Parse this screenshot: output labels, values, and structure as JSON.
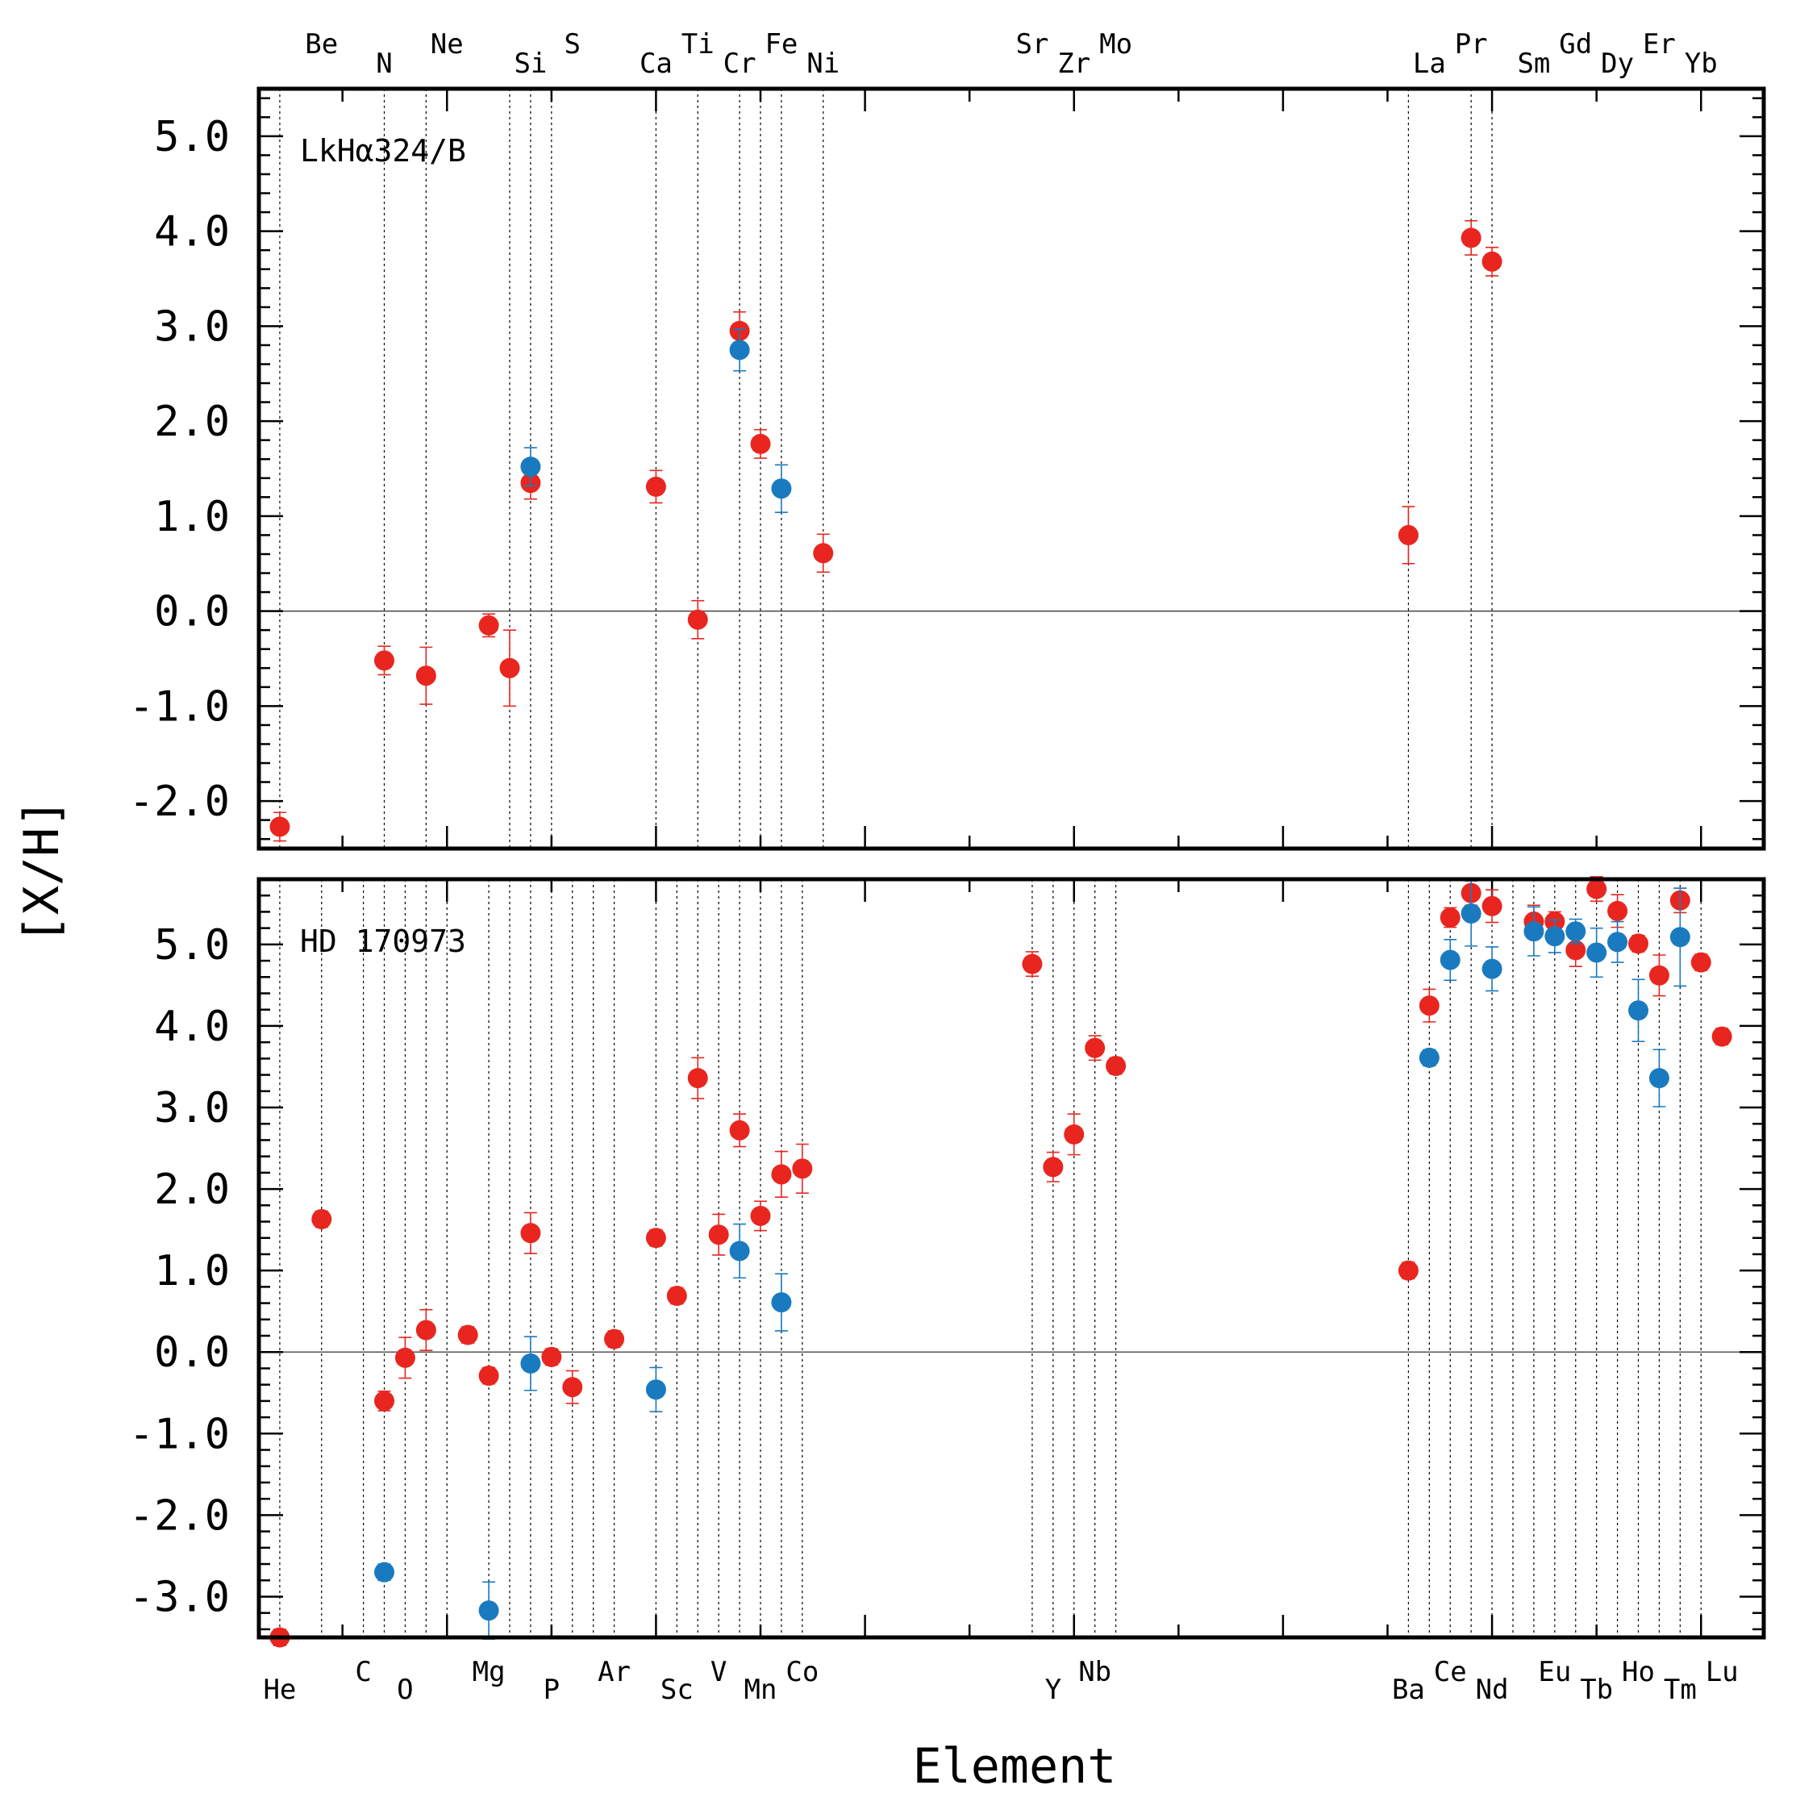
{
  "colors": {
    "red": "#e8261f",
    "blue": "#1a7abf"
  },
  "chart_data": {
    "type": "scatter",
    "xlabel": "Element",
    "ylabel": "[X/H]",
    "x_axis": "atomic number Z",
    "xlim": [
      1,
      73
    ],
    "elements_top": [
      {
        "symbol": "Be",
        "z": 4
      },
      {
        "symbol": "N",
        "z": 7
      },
      {
        "symbol": "Ne",
        "z": 10
      },
      {
        "symbol": "Si",
        "z": 14
      },
      {
        "symbol": "S",
        "z": 16
      },
      {
        "symbol": "Ca",
        "z": 20
      },
      {
        "symbol": "Ti",
        "z": 22
      },
      {
        "symbol": "Cr",
        "z": 24
      },
      {
        "symbol": "Fe",
        "z": 26
      },
      {
        "symbol": "Ni",
        "z": 28
      },
      {
        "symbol": "Sr",
        "z": 38
      },
      {
        "symbol": "Zr",
        "z": 40
      },
      {
        "symbol": "Mo",
        "z": 42
      },
      {
        "symbol": "La",
        "z": 57
      },
      {
        "symbol": "Pr",
        "z": 59
      },
      {
        "symbol": "Sm",
        "z": 62
      },
      {
        "symbol": "Gd",
        "z": 64
      },
      {
        "symbol": "Dy",
        "z": 66
      },
      {
        "symbol": "Er",
        "z": 68
      },
      {
        "symbol": "Yb",
        "z": 70
      }
    ],
    "elements_bottom": [
      {
        "symbol": "He",
        "z": 2
      },
      {
        "symbol": "C",
        "z": 6
      },
      {
        "symbol": "O",
        "z": 8
      },
      {
        "symbol": "Mg",
        "z": 12
      },
      {
        "symbol": "P",
        "z": 15
      },
      {
        "symbol": "Ar",
        "z": 18
      },
      {
        "symbol": "Sc",
        "z": 21
      },
      {
        "symbol": "V",
        "z": 23
      },
      {
        "symbol": "Mn",
        "z": 25
      },
      {
        "symbol": "Co",
        "z": 27
      },
      {
        "symbol": "Y",
        "z": 39
      },
      {
        "symbol": "Nb",
        "z": 41
      },
      {
        "symbol": "Ba",
        "z": 56
      },
      {
        "symbol": "Ce",
        "z": 58
      },
      {
        "symbol": "Nd",
        "z": 60
      },
      {
        "symbol": "Eu",
        "z": 63
      },
      {
        "symbol": "Tb",
        "z": 65
      },
      {
        "symbol": "Ho",
        "z": 67
      },
      {
        "symbol": "Tm",
        "z": 69
      },
      {
        "symbol": "Lu",
        "z": 71
      }
    ],
    "panels": [
      {
        "label": "LkHα324/B",
        "ylim": [
          -2.5,
          5.5
        ],
        "yticks": [
          "5.0",
          "4.0",
          "3.0",
          "2.0",
          "1.0",
          "0.0",
          "-1.0",
          "-2.0"
        ],
        "guides_z": [
          2,
          7,
          9,
          13,
          14,
          15,
          20,
          22,
          24,
          25,
          26,
          28,
          56,
          59,
          60
        ],
        "series": [
          {
            "name": "red",
            "points": [
              {
                "z": 2,
                "y": -2.27,
                "err": 0.15
              },
              {
                "z": 7,
                "y": -0.52,
                "err": 0.15
              },
              {
                "z": 9,
                "y": -0.68,
                "err": 0.3
              },
              {
                "z": 12,
                "y": -0.15,
                "err": 0.12
              },
              {
                "z": 13,
                "y": -0.6,
                "err": 0.4
              },
              {
                "z": 14,
                "y": 1.35,
                "err": 0.17
              },
              {
                "z": 20,
                "y": 1.31,
                "err": 0.17
              },
              {
                "z": 22,
                "y": -0.09,
                "err": 0.2
              },
              {
                "z": 24,
                "y": 2.95,
                "err": 0.2
              },
              {
                "z": 25,
                "y": 1.76,
                "err": 0.15
              },
              {
                "z": 28,
                "y": 0.61,
                "err": 0.2
              },
              {
                "z": 56,
                "y": 0.8,
                "err": 0.3
              },
              {
                "z": 59,
                "y": 3.93,
                "err": 0.18
              },
              {
                "z": 60,
                "y": 3.68,
                "err": 0.15
              }
            ]
          },
          {
            "name": "blue",
            "points": [
              {
                "z": 14,
                "y": 1.52,
                "err": 0.2
              },
              {
                "z": 24,
                "y": 2.75,
                "err": 0.22
              },
              {
                "z": 26,
                "y": 1.29,
                "err": 0.25
              }
            ]
          }
        ]
      },
      {
        "label": "HD 170973",
        "ylim": [
          -3.5,
          5.8
        ],
        "yticks": [
          "5.0",
          "4.0",
          "3.0",
          "2.0",
          "1.0",
          "0.0",
          "-1.0",
          "-2.0",
          "-3.0"
        ],
        "guides_z": [
          2,
          4,
          6,
          7,
          8,
          9,
          10,
          12,
          13,
          14,
          15,
          16,
          17,
          18,
          20,
          21,
          22,
          23,
          24,
          25,
          26,
          27,
          38,
          39,
          40,
          41,
          42,
          56,
          57,
          58,
          59,
          60,
          61,
          62,
          63,
          64,
          65,
          66,
          67,
          68,
          69,
          70
        ],
        "series": [
          {
            "name": "red",
            "points": [
              {
                "z": 2,
                "y": -3.5,
                "err": 0.1
              },
              {
                "z": 4,
                "y": 1.63,
                "err": 0.1
              },
              {
                "z": 7,
                "y": -0.6,
                "err": 0.12
              },
              {
                "z": 8,
                "y": -0.07,
                "err": 0.25
              },
              {
                "z": 9,
                "y": 0.27,
                "err": 0.25
              },
              {
                "z": 11,
                "y": 0.21,
                "err": 0.1
              },
              {
                "z": 12,
                "y": -0.29,
                "err": 0.1
              },
              {
                "z": 14,
                "y": 1.46,
                "err": 0.25
              },
              {
                "z": 15,
                "y": -0.06,
                "err": 0.1
              },
              {
                "z": 16,
                "y": -0.43,
                "err": 0.2
              },
              {
                "z": 18,
                "y": 0.16,
                "err": 0.1
              },
              {
                "z": 20,
                "y": 1.4,
                "err": 0.1
              },
              {
                "z": 21,
                "y": 0.69,
                "err": 0.1
              },
              {
                "z": 22,
                "y": 3.36,
                "err": 0.25
              },
              {
                "z": 23,
                "y": 1.44,
                "err": 0.25
              },
              {
                "z": 24,
                "y": 2.72,
                "err": 0.2
              },
              {
                "z": 25,
                "y": 1.67,
                "err": 0.18
              },
              {
                "z": 26,
                "y": 2.18,
                "err": 0.28
              },
              {
                "z": 27,
                "y": 2.25,
                "err": 0.3
              },
              {
                "z": 38,
                "y": 4.76,
                "err": 0.15
              },
              {
                "z": 39,
                "y": 2.27,
                "err": 0.18
              },
              {
                "z": 40,
                "y": 2.67,
                "err": 0.25
              },
              {
                "z": 41,
                "y": 3.73,
                "err": 0.15
              },
              {
                "z": 42,
                "y": 3.51,
                "err": 0.1
              },
              {
                "z": 56,
                "y": 1.0,
                "err": 0.1
              },
              {
                "z": 57,
                "y": 4.25,
                "err": 0.2
              },
              {
                "z": 58,
                "y": 5.33,
                "err": 0.12
              },
              {
                "z": 59,
                "y": 5.63,
                "err": 0.15
              },
              {
                "z": 60,
                "y": 5.47,
                "err": 0.2
              },
              {
                "z": 62,
                "y": 5.28,
                "err": 0.2
              },
              {
                "z": 63,
                "y": 5.28,
                "err": 0.12
              },
              {
                "z": 64,
                "y": 4.93,
                "err": 0.2
              },
              {
                "z": 65,
                "y": 5.68,
                "err": 0.15
              },
              {
                "z": 66,
                "y": 5.41,
                "err": 0.2
              },
              {
                "z": 67,
                "y": 5.01,
                "err": 0.1
              },
              {
                "z": 68,
                "y": 4.62,
                "err": 0.25
              },
              {
                "z": 69,
                "y": 5.54,
                "err": 0.15
              },
              {
                "z": 70,
                "y": 4.78,
                "err": 0.1
              },
              {
                "z": 71,
                "y": 3.87,
                "err": 0.1
              }
            ]
          },
          {
            "name": "blue",
            "points": [
              {
                "z": 7,
                "y": -2.7,
                "err": 0.1
              },
              {
                "z": 12,
                "y": -3.17,
                "err": 0.35
              },
              {
                "z": 14,
                "y": -0.14,
                "err": 0.33
              },
              {
                "z": 20,
                "y": -0.46,
                "err": 0.27
              },
              {
                "z": 24,
                "y": 1.24,
                "err": 0.33
              },
              {
                "z": 26,
                "y": 0.61,
                "err": 0.35
              },
              {
                "z": 57,
                "y": 3.61,
                "err": 0.1
              },
              {
                "z": 58,
                "y": 4.81,
                "err": 0.25
              },
              {
                "z": 59,
                "y": 5.38,
                "err": 0.4
              },
              {
                "z": 60,
                "y": 4.7,
                "err": 0.27
              },
              {
                "z": 62,
                "y": 5.16,
                "err": 0.3
              },
              {
                "z": 63,
                "y": 5.1,
                "err": 0.2
              },
              {
                "z": 64,
                "y": 5.16,
                "err": 0.15
              },
              {
                "z": 65,
                "y": 4.9,
                "err": 0.3
              },
              {
                "z": 66,
                "y": 5.03,
                "err": 0.25
              },
              {
                "z": 67,
                "y": 4.19,
                "err": 0.38
              },
              {
                "z": 68,
                "y": 3.36,
                "err": 0.35
              },
              {
                "z": 69,
                "y": 5.09,
                "err": 0.6
              }
            ]
          }
        ]
      }
    ]
  }
}
